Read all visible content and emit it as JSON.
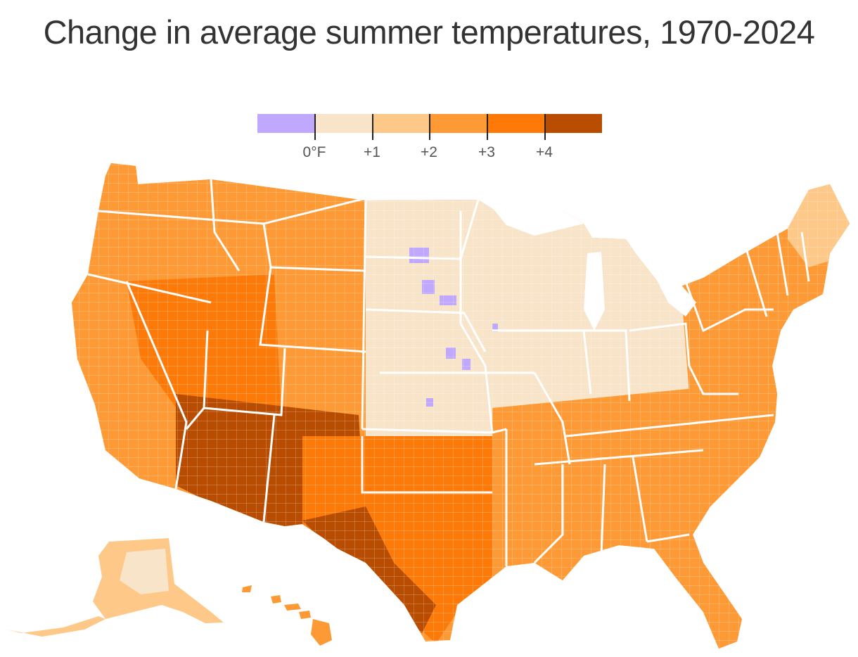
{
  "title": "Change in average summer temperatures, 1970-2024",
  "legend": {
    "bins": [
      {
        "color": "#c0a8ff"
      },
      {
        "color": "#f8e4c8"
      },
      {
        "color": "#fec889"
      },
      {
        "color": "#fd9a35"
      },
      {
        "color": "#fd7a08"
      },
      {
        "color": "#b84c00"
      }
    ],
    "ticks": [
      "0°F",
      "+1",
      "+2",
      "+3",
      "+4"
    ]
  },
  "map": {
    "regions": [
      {
        "name": "west-coast",
        "class": 3
      },
      {
        "name": "great-basin",
        "class": 4
      },
      {
        "name": "southwest",
        "class": 5
      },
      {
        "name": "northern-rockies",
        "class": 3
      },
      {
        "name": "northern-plains",
        "class": 1
      },
      {
        "name": "central-plains",
        "class": 1
      },
      {
        "name": "texas",
        "class": 4
      },
      {
        "name": "midwest",
        "class": 1
      },
      {
        "name": "southeast",
        "class": 3
      },
      {
        "name": "northeast",
        "class": 3
      },
      {
        "name": "alaska",
        "class": 2
      },
      {
        "name": "hawaii",
        "class": 3
      }
    ]
  }
}
